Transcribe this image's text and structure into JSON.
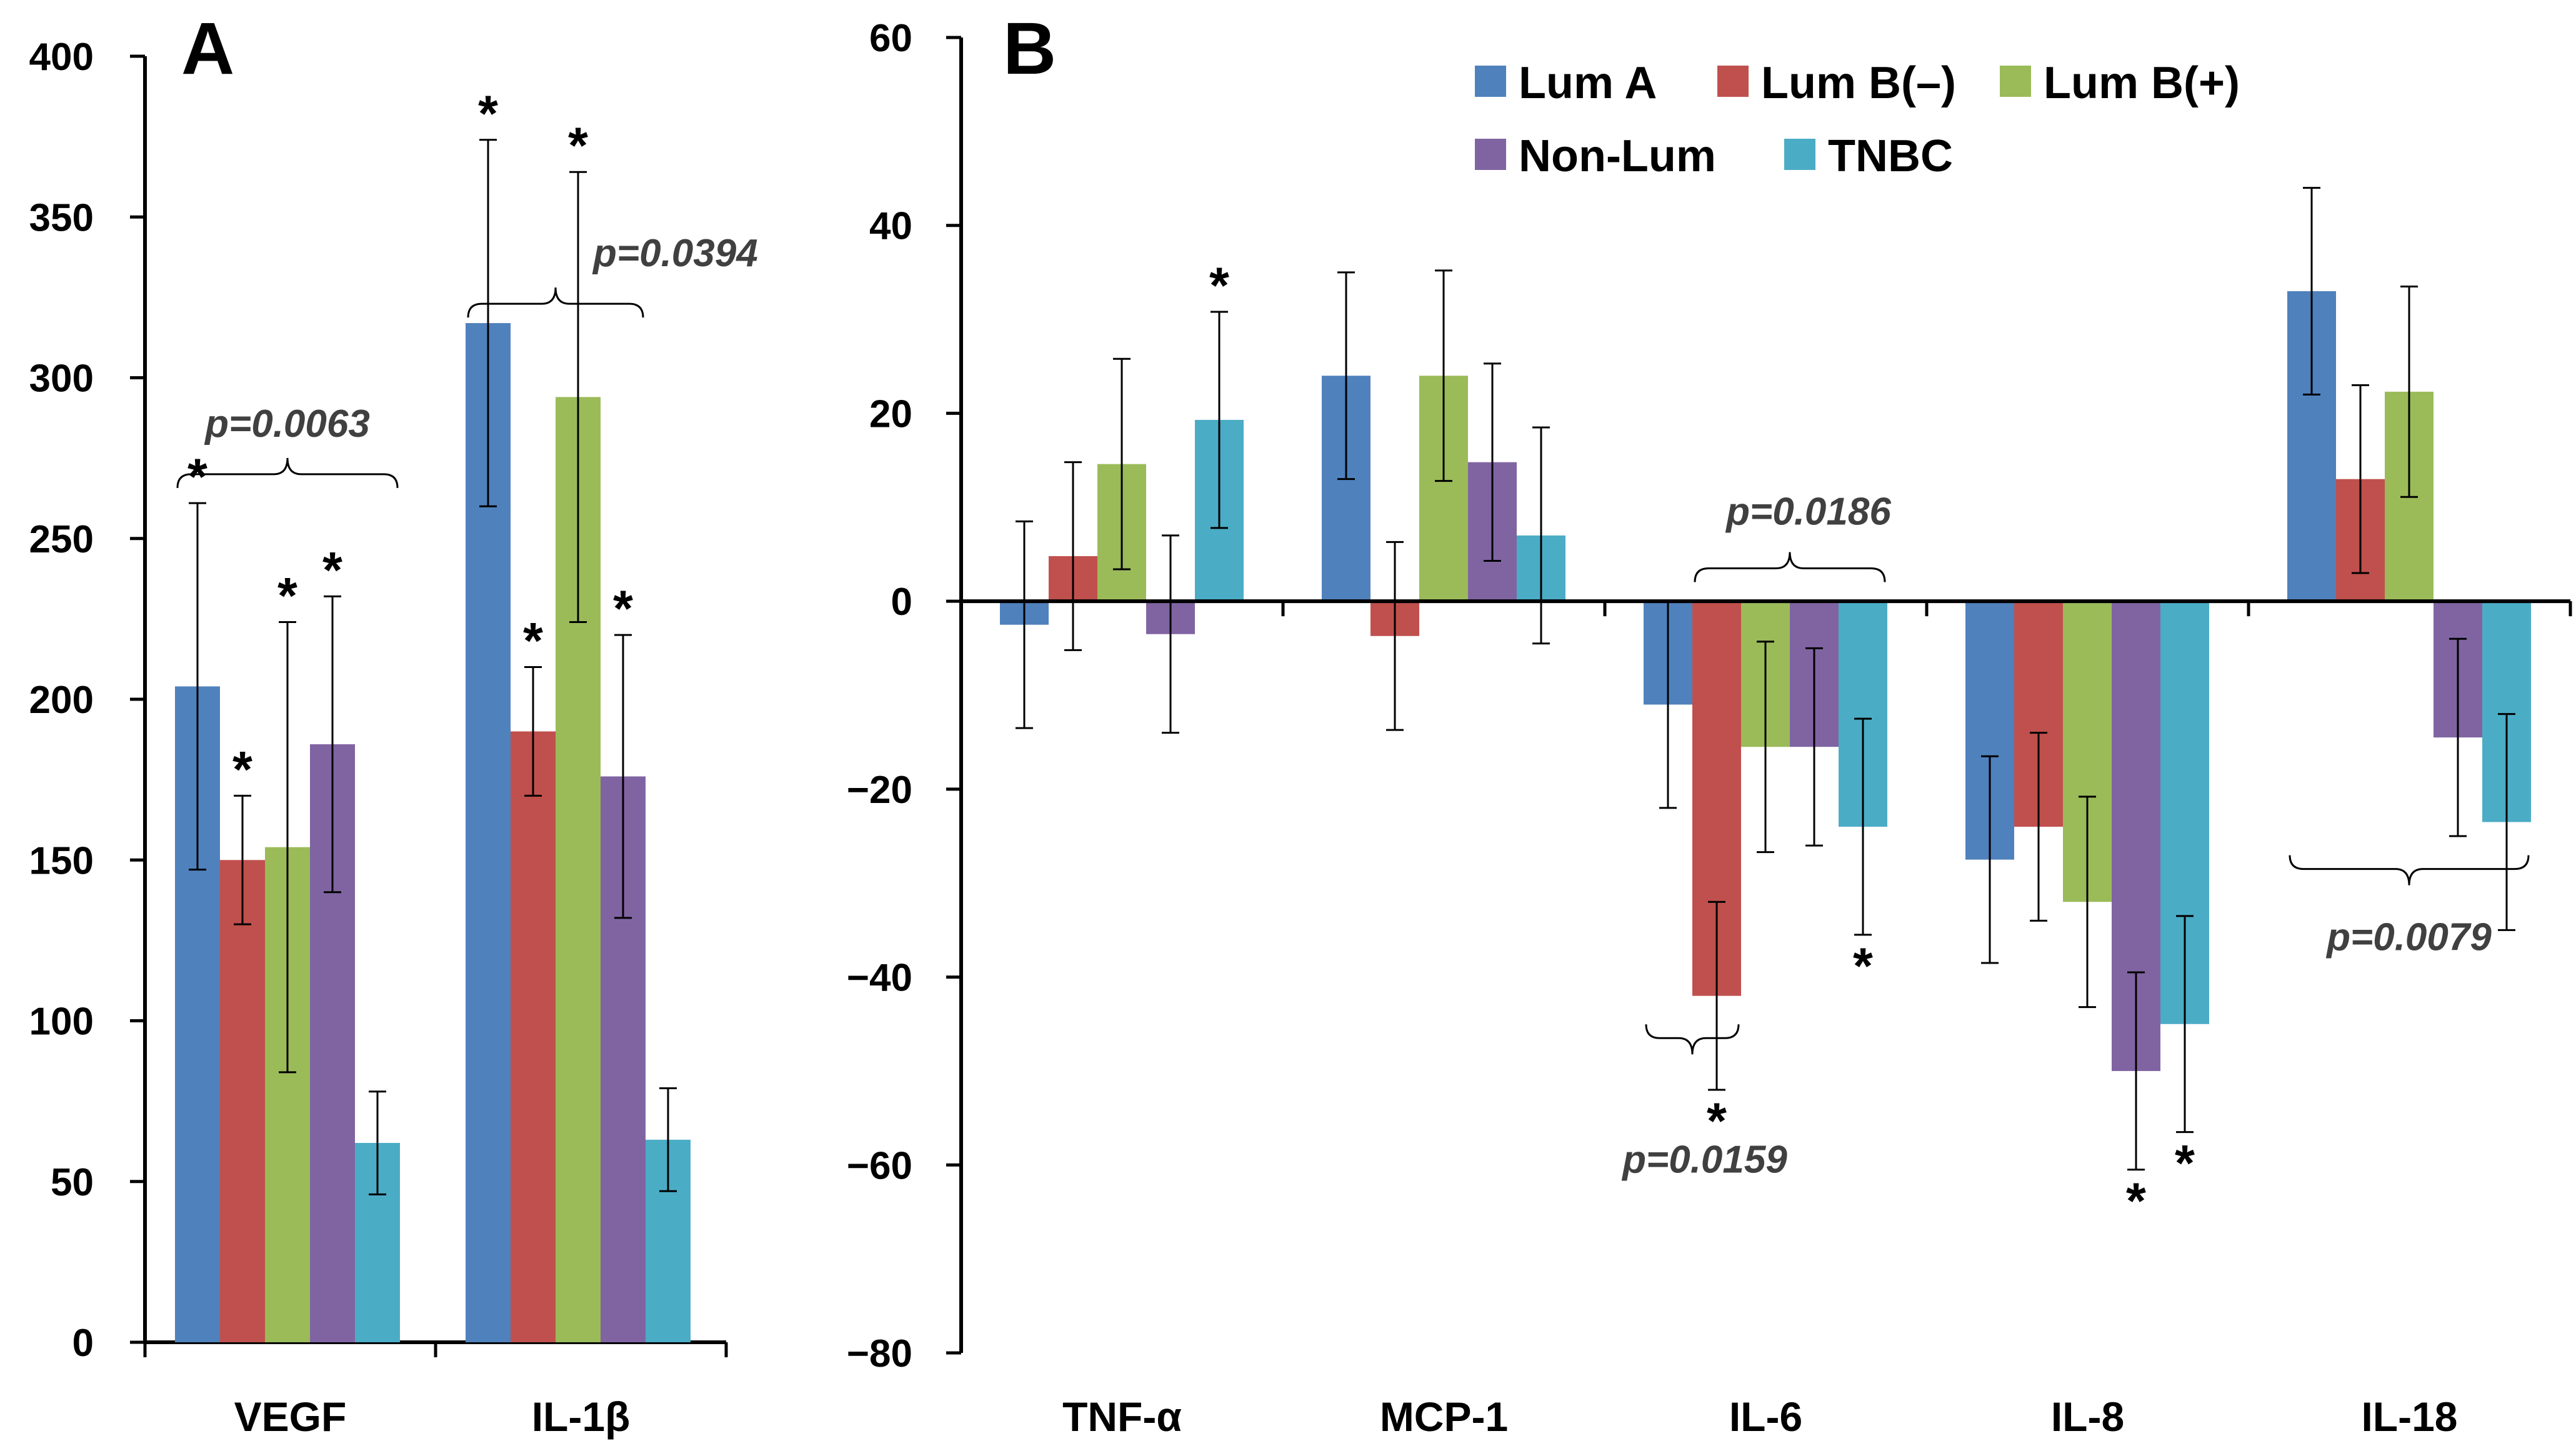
{
  "series_names": [
    "Lum A",
    "Lum B(–)",
    "Lum B(+)",
    "Non-Lum",
    "TNBC"
  ],
  "series_colors": [
    "#4F81BD",
    "#C0504D",
    "#9BBB59",
    "#8064A2",
    "#4BACC6"
  ],
  "chart_data": [
    {
      "panel": "A",
      "type": "bar",
      "categories": [
        "VEGF",
        "IL-1β"
      ],
      "ylim": [
        0,
        400
      ],
      "yticks": [
        "0",
        "50",
        "100",
        "150",
        "200",
        "250",
        "300",
        "350",
        "400"
      ],
      "series": [
        {
          "name": "Lum A",
          "values": [
            204,
            317
          ],
          "errors": [
            57,
            57
          ],
          "stars": [
            "*",
            "*"
          ]
        },
        {
          "name": "Lum B(–)",
          "values": [
            150,
            190
          ],
          "errors": [
            20,
            20
          ],
          "stars": [
            "*",
            "*"
          ]
        },
        {
          "name": "Lum B(+)",
          "values": [
            154,
            294
          ],
          "errors": [
            70,
            70
          ],
          "stars": [
            "*",
            "*"
          ]
        },
        {
          "name": "Non-Lum",
          "values": [
            186,
            176
          ],
          "errors": [
            46,
            44
          ],
          "stars": [
            "*",
            "*"
          ]
        },
        {
          "name": "TNBC",
          "values": [
            62,
            63
          ],
          "errors": [
            16,
            16
          ],
          "stars": [
            "",
            ""
          ]
        }
      ],
      "annotations": [
        {
          "text": "p=0.0063",
          "category": "VEGF",
          "span": "Lum A – TNBC",
          "level": 270
        },
        {
          "text": "p=0.0394",
          "category": "IL-1β",
          "span": "Lum A – Non-Lum",
          "level": 323
        }
      ]
    },
    {
      "panel": "B",
      "type": "bar",
      "categories": [
        "TNF-α",
        "MCP-1",
        "IL-6",
        "IL-8",
        "IL-18"
      ],
      "ylim": [
        -80,
        60
      ],
      "yticks": [
        "−80",
        "−60",
        "−40",
        "−20",
        "0",
        "20",
        "40",
        "60"
      ],
      "series": [
        {
          "name": "Lum A",
          "values": [
            -2.5,
            24,
            -11,
            -27.5,
            33
          ],
          "errors": [
            11,
            11,
            11,
            11,
            11
          ],
          "stars": [
            "",
            "",
            "",
            "",
            ""
          ]
        },
        {
          "name": "Lum B(–)",
          "values": [
            4.8,
            -3.7,
            -42,
            -24,
            13
          ],
          "errors": [
            10,
            10,
            10,
            10,
            10
          ],
          "stars": [
            "",
            "",
            "*",
            "",
            ""
          ]
        },
        {
          "name": "Lum B(+)",
          "values": [
            14.6,
            24,
            -15.5,
            -32,
            22.3
          ],
          "errors": [
            11.2,
            11.2,
            11.2,
            11.2,
            11.2
          ],
          "stars": [
            "",
            "",
            "",
            "",
            ""
          ]
        },
        {
          "name": "Non-Lum",
          "values": [
            -3.5,
            14.8,
            -15.5,
            -50,
            -14.5
          ],
          "errors": [
            10.5,
            10.5,
            10.5,
            10.5,
            10.5
          ],
          "stars": [
            "",
            "",
            "",
            "*",
            ""
          ]
        },
        {
          "name": "TNBC",
          "values": [
            19.3,
            7,
            -24,
            -45,
            -23.5
          ],
          "errors": [
            11.5,
            11.5,
            11.5,
            11.5,
            11.5
          ],
          "stars": [
            "*",
            "",
            "*",
            "*",
            ""
          ]
        }
      ],
      "annotations": [
        {
          "text": "p=0.0186",
          "category": "IL-6",
          "span": "Lum B(–) – TNBC",
          "level": 3.5
        },
        {
          "text": "p=0.0159",
          "category": "IL-6",
          "span": "Lum A – Lum B(–)",
          "level": -46.5
        },
        {
          "text": "p=0.0079",
          "category": "IL-18",
          "span": "Lum A – TNBC",
          "level": -28.5
        }
      ]
    }
  ]
}
